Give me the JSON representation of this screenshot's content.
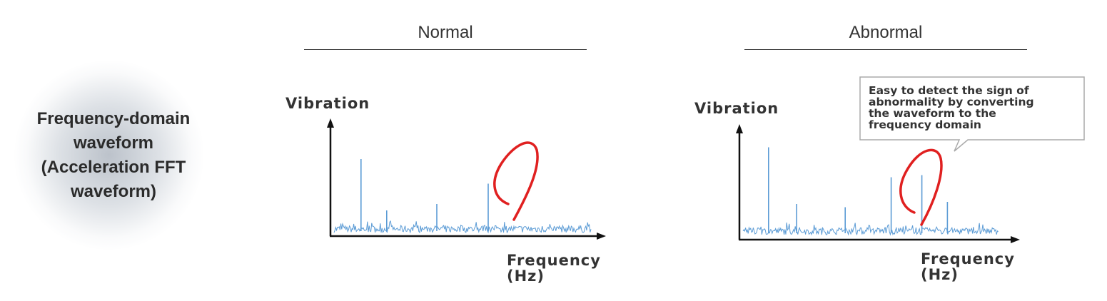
{
  "row_label": {
    "lines": [
      "Frequency-domain",
      "waveform",
      "(Acceleration FFT",
      "waveform)"
    ]
  },
  "columns": [
    {
      "title": "Normal"
    },
    {
      "title": "Abnormal"
    }
  ],
  "chart_data": [
    {
      "type": "line",
      "panel": "Normal",
      "ylabel": "Vibration",
      "xlabel_lines": [
        "Frequency",
        "(Hz)"
      ],
      "x_range": [
        0,
        1
      ],
      "y_range": [
        0,
        1
      ],
      "noise_floor": 0.12,
      "series": [
        {
          "color": "#5b9bd5",
          "x": [
            0.105,
            0.205,
            0.4,
            0.6
          ],
          "values": [
            0.7,
            0.22,
            0.28,
            0.47
          ]
        }
      ],
      "annotations": [
        {
          "type": "hand-drawn-loop",
          "color": "#e02020",
          "x": 0.7,
          "y": 0.6
        }
      ]
    },
    {
      "type": "line",
      "panel": "Abnormal",
      "ylabel": "Vibration",
      "xlabel_lines": [
        "Frequency",
        "(Hz)"
      ],
      "x_range": [
        0,
        1
      ],
      "y_range": [
        0,
        1
      ],
      "noise_floor": 0.12,
      "series": [
        {
          "color": "#5b9bd5",
          "x": [
            0.1,
            0.21,
            0.4,
            0.58,
            0.7,
            0.8
          ],
          "values": [
            0.83,
            0.3,
            0.27,
            0.55,
            0.57,
            0.32
          ]
        }
      ],
      "annotations": [
        {
          "type": "hand-drawn-loop",
          "color": "#e02020",
          "x": 0.7,
          "y": 0.6
        },
        {
          "type": "callout",
          "lines": [
            "Easy to detect the sign of",
            "abnormality by converting",
            "the waveform to the",
            "frequency domain"
          ]
        }
      ]
    }
  ],
  "colors": {
    "signal": "#5b9bd5",
    "marker": "#e02020",
    "axis": "#111111"
  }
}
